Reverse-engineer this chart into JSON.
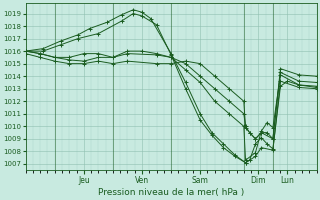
{
  "xlabel": "Pression niveau de la mer( hPa )",
  "bg_color": "#c8eae0",
  "grid_major_color": "#8fbfb0",
  "grid_minor_color": "#a8d4c8",
  "line_color": "#1a5c20",
  "ylim": [
    1006.5,
    1019.8
  ],
  "yticks": [
    1007,
    1008,
    1009,
    1010,
    1011,
    1012,
    1013,
    1014,
    1015,
    1016,
    1017,
    1018,
    1019
  ],
  "xlim": [
    0,
    5.0
  ],
  "day_ticks": [
    1.0,
    2.0,
    3.0,
    4.0,
    4.5
  ],
  "day_labels": [
    "Jeu",
    "Ven",
    "Sam",
    "Dim",
    "Lun"
  ],
  "vlines": [
    0.5,
    1.5,
    2.5,
    3.75,
    4.25
  ],
  "series": [
    [
      [
        0.0,
        1016.0
      ],
      [
        0.3,
        1016.2
      ],
      [
        0.6,
        1016.8
      ],
      [
        0.9,
        1017.3
      ],
      [
        1.1,
        1017.8
      ],
      [
        1.4,
        1018.3
      ],
      [
        1.65,
        1018.9
      ],
      [
        1.85,
        1019.3
      ],
      [
        2.0,
        1019.1
      ],
      [
        2.15,
        1018.6
      ],
      [
        2.5,
        1015.8
      ],
      [
        2.75,
        1013.5
      ],
      [
        3.0,
        1011.0
      ],
      [
        3.2,
        1009.5
      ],
      [
        3.4,
        1008.6
      ],
      [
        3.6,
        1007.7
      ],
      [
        3.78,
        1007.1
      ],
      [
        3.85,
        1007.3
      ],
      [
        3.95,
        1008.6
      ],
      [
        4.05,
        1009.1
      ],
      [
        4.15,
        1008.6
      ],
      [
        4.25,
        1008.2
      ],
      [
        4.38,
        1013.2
      ],
      [
        4.5,
        1013.6
      ],
      [
        4.7,
        1013.3
      ],
      [
        5.0,
        1013.1
      ]
    ],
    [
      [
        0.0,
        1016.0
      ],
      [
        0.3,
        1016.0
      ],
      [
        0.6,
        1016.5
      ],
      [
        0.9,
        1017.0
      ],
      [
        1.25,
        1017.4
      ],
      [
        1.65,
        1018.4
      ],
      [
        1.85,
        1019.0
      ],
      [
        2.0,
        1018.8
      ],
      [
        2.25,
        1018.1
      ],
      [
        2.5,
        1015.7
      ],
      [
        2.75,
        1013.0
      ],
      [
        3.0,
        1010.5
      ],
      [
        3.2,
        1009.3
      ],
      [
        3.4,
        1008.3
      ],
      [
        3.6,
        1007.6
      ],
      [
        3.78,
        1007.1
      ],
      [
        3.95,
        1007.6
      ],
      [
        4.05,
        1008.3
      ],
      [
        4.25,
        1008.1
      ],
      [
        4.38,
        1013.6
      ],
      [
        4.7,
        1013.1
      ],
      [
        5.0,
        1013.0
      ]
    ],
    [
      [
        0.0,
        1016.0
      ],
      [
        0.25,
        1015.8
      ],
      [
        0.5,
        1015.5
      ],
      [
        0.75,
        1015.5
      ],
      [
        1.0,
        1015.8
      ],
      [
        1.25,
        1015.8
      ],
      [
        1.5,
        1015.5
      ],
      [
        1.75,
        1016.0
      ],
      [
        2.0,
        1016.0
      ],
      [
        2.25,
        1015.8
      ],
      [
        2.5,
        1015.5
      ],
      [
        2.75,
        1014.5
      ],
      [
        3.0,
        1013.5
      ],
      [
        3.25,
        1012.0
      ],
      [
        3.5,
        1011.0
      ],
      [
        3.75,
        1010.0
      ],
      [
        3.78,
        1007.3
      ],
      [
        3.95,
        1007.9
      ],
      [
        4.05,
        1009.6
      ],
      [
        4.15,
        1010.3
      ],
      [
        4.25,
        1009.9
      ],
      [
        4.38,
        1014.1
      ],
      [
        4.7,
        1013.3
      ],
      [
        5.0,
        1013.2
      ]
    ],
    [
      [
        0.0,
        1016.0
      ],
      [
        0.25,
        1015.8
      ],
      [
        0.5,
        1015.5
      ],
      [
        0.75,
        1015.3
      ],
      [
        1.0,
        1015.2
      ],
      [
        1.25,
        1015.5
      ],
      [
        1.5,
        1015.5
      ],
      [
        1.75,
        1015.8
      ],
      [
        2.25,
        1015.7
      ],
      [
        2.5,
        1015.5
      ],
      [
        2.75,
        1015.0
      ],
      [
        3.0,
        1014.0
      ],
      [
        3.25,
        1013.0
      ],
      [
        3.5,
        1012.0
      ],
      [
        3.75,
        1011.0
      ],
      [
        3.78,
        1010.0
      ],
      [
        3.85,
        1009.5
      ],
      [
        3.95,
        1009.0
      ],
      [
        4.05,
        1009.5
      ],
      [
        4.15,
        1009.5
      ],
      [
        4.25,
        1009.0
      ],
      [
        4.38,
        1014.3
      ],
      [
        4.7,
        1013.6
      ],
      [
        5.0,
        1013.5
      ]
    ],
    [
      [
        0.0,
        1015.8
      ],
      [
        0.25,
        1015.5
      ],
      [
        0.5,
        1015.2
      ],
      [
        0.75,
        1015.0
      ],
      [
        1.0,
        1015.0
      ],
      [
        1.25,
        1015.2
      ],
      [
        1.5,
        1015.0
      ],
      [
        1.75,
        1015.2
      ],
      [
        2.25,
        1015.0
      ],
      [
        2.5,
        1015.0
      ],
      [
        2.75,
        1015.2
      ],
      [
        3.0,
        1015.0
      ],
      [
        3.25,
        1014.0
      ],
      [
        3.5,
        1013.0
      ],
      [
        3.75,
        1012.0
      ],
      [
        3.78,
        1009.9
      ],
      [
        3.85,
        1009.5
      ],
      [
        3.95,
        1009.0
      ],
      [
        4.05,
        1009.5
      ],
      [
        4.25,
        1009.0
      ],
      [
        4.38,
        1014.6
      ],
      [
        4.7,
        1014.1
      ],
      [
        5.0,
        1014.0
      ]
    ]
  ]
}
